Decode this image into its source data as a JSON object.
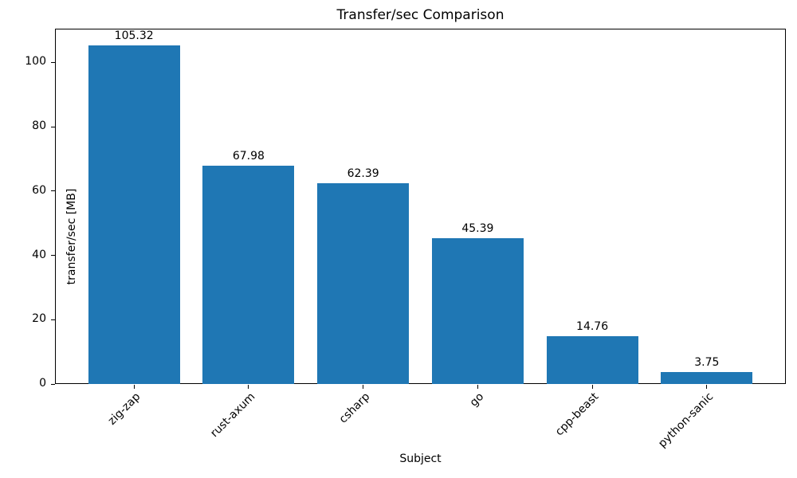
{
  "chart_data": {
    "type": "bar",
    "title": "Transfer/sec Comparison",
    "xlabel": "Subject",
    "ylabel": "transfer/sec [MB]",
    "categories": [
      "zig-zap",
      "rust-axum",
      "csharp",
      "go",
      "cpp-beast",
      "python-sanic"
    ],
    "values": [
      105.32,
      67.98,
      62.39,
      45.39,
      14.76,
      3.75
    ],
    "bar_labels": [
      "105.32",
      "67.98",
      "62.39",
      "45.39",
      "14.76",
      "3.75"
    ],
    "yticks": [
      0,
      20,
      40,
      60,
      80,
      100
    ],
    "ylim": [
      0,
      110.5
    ],
    "xlim": [
      -0.69,
      5.69
    ],
    "bar_width_fraction": 0.8,
    "bar_color": "#1f77b4",
    "xtick_rotation_deg": 45,
    "grid": false,
    "legend": null
  }
}
